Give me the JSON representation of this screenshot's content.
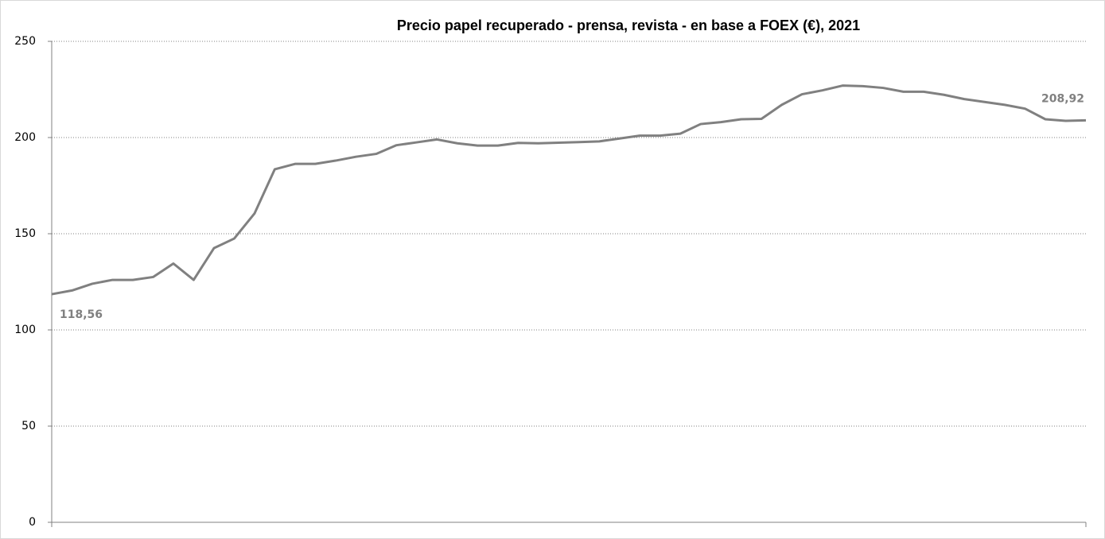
{
  "chart_data": {
    "type": "line",
    "title": "Precio papel recuperado - prensa, revista - en base a FOEX  (€), 2021",
    "categories": [
      null,
      null,
      null,
      null,
      null,
      null,
      null,
      null,
      null,
      null,
      null,
      null,
      null,
      null,
      null,
      null,
      null,
      null,
      null,
      null,
      null,
      null,
      null,
      null,
      null,
      null,
      null,
      null,
      null,
      null,
      null,
      null,
      null,
      null,
      null,
      null,
      null,
      null,
      null,
      null,
      null,
      null,
      null,
      null,
      null,
      null,
      null,
      null,
      null,
      null,
      null,
      null
    ],
    "series": [
      {
        "color": "#808080",
        "values": [
          118.56,
          120.5,
          124,
          126,
          126,
          127.5,
          134.5,
          126,
          142.5,
          147.5,
          160.5,
          183.5,
          186.3,
          186.3,
          188,
          190,
          191.5,
          196,
          197.5,
          199,
          197,
          195.8,
          195.8,
          197.2,
          197,
          197.3,
          197.6,
          198,
          199.5,
          201,
          201,
          202,
          207,
          208,
          209.5,
          209.7,
          217,
          222.5,
          224.5,
          227,
          226.7,
          225.8,
          223.8,
          223.8,
          222.2,
          220,
          218.5,
          217,
          215,
          209.5,
          208.7,
          208.92
        ],
        "value_labels": [
          "118,56",
          null,
          null,
          null,
          null,
          null,
          null,
          null,
          null,
          null,
          null,
          null,
          null,
          null,
          null,
          null,
          null,
          null,
          null,
          null,
          null,
          null,
          null,
          null,
          null,
          null,
          null,
          null,
          null,
          null,
          null,
          null,
          null,
          null,
          null,
          null,
          null,
          null,
          null,
          null,
          null,
          null,
          null,
          null,
          null,
          null,
          null,
          null,
          null,
          null,
          null,
          "208,92"
        ]
      }
    ],
    "ylim": [
      0,
      250
    ],
    "yticks": [
      0,
      50,
      100,
      150,
      200,
      250
    ],
    "grid": true
  }
}
